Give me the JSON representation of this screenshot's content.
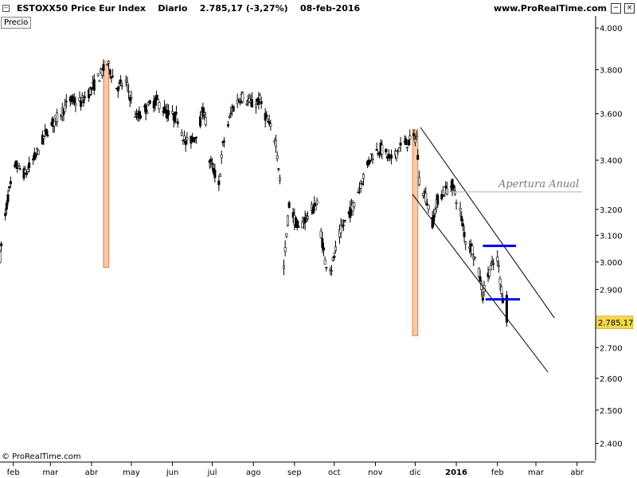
{
  "header": {
    "collapse_icon": "−",
    "title_segments": [
      "ESTOXX50 Price Eur Index",
      "Diario",
      "2.785,17 (-3,27%)",
      "08-feb-2016"
    ],
    "site": "www.ProRealTime.com",
    "minimize_icon": "−",
    "close_icon": "×"
  },
  "precio_tab": "Precio",
  "copyright": "© ProRealTime.com",
  "chart_data": {
    "type": "candlestick",
    "title": "ESTOXX50 Price Eur Index",
    "period": "Diario",
    "last_value": 2785.17,
    "last_value_label": "2.785,17",
    "change_label": "-3,27%",
    "date_label": "08-feb-2016",
    "y_scale": "log",
    "ylim": [
      2350,
      4060
    ],
    "y_ticks": [
      {
        "value": 4000,
        "label": "4.000"
      },
      {
        "value": 3800,
        "label": "3.800"
      },
      {
        "value": 3600,
        "label": "3.600"
      },
      {
        "value": 3400,
        "label": "3.400"
      },
      {
        "value": 3200,
        "label": "3.200"
      },
      {
        "value": 3100,
        "label": "3.100"
      },
      {
        "value": 3000,
        "label": "3.000"
      },
      {
        "value": 2900,
        "label": "2.900"
      },
      {
        "value": 2700,
        "label": "2.700"
      },
      {
        "value": 2600,
        "label": "2.600"
      },
      {
        "value": 2500,
        "label": "2.500"
      },
      {
        "value": 2400,
        "label": "2.400"
      }
    ],
    "x_range": [
      "2015-01-22",
      "2016-04-15"
    ],
    "x_ticks": [
      {
        "date": "2015-02-01",
        "label": "feb"
      },
      {
        "date": "2015-03-01",
        "label": "mar"
      },
      {
        "date": "2015-04-01",
        "label": "abr"
      },
      {
        "date": "2015-05-01",
        "label": "may"
      },
      {
        "date": "2015-06-01",
        "label": "jun"
      },
      {
        "date": "2015-07-01",
        "label": "jul"
      },
      {
        "date": "2015-08-01",
        "label": "ago"
      },
      {
        "date": "2015-09-01",
        "label": "sep"
      },
      {
        "date": "2015-10-01",
        "label": "oct"
      },
      {
        "date": "2015-11-01",
        "label": "nov"
      },
      {
        "date": "2015-12-01",
        "label": "dic"
      },
      {
        "date": "2016-01-01",
        "label": "2016",
        "bold": true
      },
      {
        "date": "2016-02-01",
        "label": "feb"
      },
      {
        "date": "2016-03-01",
        "label": "mar"
      },
      {
        "date": "2016-04-01",
        "label": "abr"
      }
    ],
    "price_path": [
      [
        "2015-01-22",
        3020
      ],
      [
        "2015-01-28",
        3250
      ],
      [
        "2015-02-03",
        3380
      ],
      [
        "2015-02-10",
        3340
      ],
      [
        "2015-02-18",
        3420
      ],
      [
        "2015-02-26",
        3520
      ],
      [
        "2015-03-06",
        3580
      ],
      [
        "2015-03-16",
        3660
      ],
      [
        "2015-03-24",
        3650
      ],
      [
        "2015-04-01",
        3710
      ],
      [
        "2015-04-08",
        3780
      ],
      [
        "2015-04-13",
        3830
      ],
      [
        "2015-04-20",
        3720
      ],
      [
        "2015-04-27",
        3740
      ],
      [
        "2015-05-05",
        3580
      ],
      [
        "2015-05-12",
        3620
      ],
      [
        "2015-05-20",
        3660
      ],
      [
        "2015-05-28",
        3600
      ],
      [
        "2015-06-05",
        3580
      ],
      [
        "2015-06-11",
        3470
      ],
      [
        "2015-06-18",
        3500
      ],
      [
        "2015-06-25",
        3620
      ],
      [
        "2015-06-29",
        3400
      ],
      [
        "2015-07-06",
        3300
      ],
      [
        "2015-07-09",
        3460
      ],
      [
        "2015-07-16",
        3620
      ],
      [
        "2015-07-23",
        3680
      ],
      [
        "2015-07-31",
        3640
      ],
      [
        "2015-08-06",
        3660
      ],
      [
        "2015-08-12",
        3560
      ],
      [
        "2015-08-18",
        3480
      ],
      [
        "2015-08-21",
        3320
      ],
      [
        "2015-08-24",
        2980
      ],
      [
        "2015-08-28",
        3220
      ],
      [
        "2015-09-04",
        3120
      ],
      [
        "2015-09-11",
        3180
      ],
      [
        "2015-09-18",
        3220
      ],
      [
        "2015-09-24",
        3000
      ],
      [
        "2015-09-29",
        2980
      ],
      [
        "2015-10-06",
        3120
      ],
      [
        "2015-10-14",
        3200
      ],
      [
        "2015-10-22",
        3320
      ],
      [
        "2015-10-29",
        3420
      ],
      [
        "2015-11-05",
        3450
      ],
      [
        "2015-11-13",
        3400
      ],
      [
        "2015-11-20",
        3460
      ],
      [
        "2015-11-27",
        3480
      ],
      [
        "2015-12-02",
        3500
      ],
      [
        "2015-12-04",
        3320
      ],
      [
        "2015-12-09",
        3250
      ],
      [
        "2015-12-14",
        3150
      ],
      [
        "2015-12-18",
        3240
      ],
      [
        "2015-12-23",
        3270
      ],
      [
        "2015-12-29",
        3300
      ],
      [
        "2016-01-04",
        3190
      ],
      [
        "2016-01-08",
        3080
      ],
      [
        "2016-01-13",
        3050
      ],
      [
        "2016-01-19",
        2940
      ],
      [
        "2016-01-21",
        2880
      ],
      [
        "2016-01-26",
        2970
      ],
      [
        "2016-02-01",
        3010
      ],
      [
        "2016-02-04",
        2900
      ],
      [
        "2016-02-08",
        2785
      ]
    ],
    "annotations": [
      {
        "type": "vband",
        "color": "#f7c9a8",
        "start": "2015-04-10",
        "end": "2015-04-14",
        "y_range": [
          2980,
          3840
        ]
      },
      {
        "type": "vband",
        "color": "#f7c9a8",
        "start": "2015-11-29",
        "end": "2015-12-03",
        "y_range": [
          2740,
          3530
        ]
      },
      {
        "type": "line",
        "color": "#000000",
        "from": [
          "2015-12-05",
          3540
        ],
        "to": [
          "2016-03-15",
          2800
        ]
      },
      {
        "type": "line",
        "color": "#000000",
        "from": [
          "2015-11-29",
          3260
        ],
        "to": [
          "2016-03-10",
          2620
        ]
      },
      {
        "type": "hline",
        "color": "#b0b0b0",
        "label": "Apertura Anual",
        "value": 3270,
        "start": "2015-12-20",
        "end": "2016-04-05"
      },
      {
        "type": "hline",
        "color": "#0000ee",
        "value": 3060,
        "start": "2016-01-21",
        "end": "2016-02-15"
      },
      {
        "type": "hline",
        "color": "#0000ee",
        "value": 2865,
        "start": "2016-01-23",
        "end": "2016-02-18"
      }
    ],
    "grid": false,
    "legend": "none"
  }
}
